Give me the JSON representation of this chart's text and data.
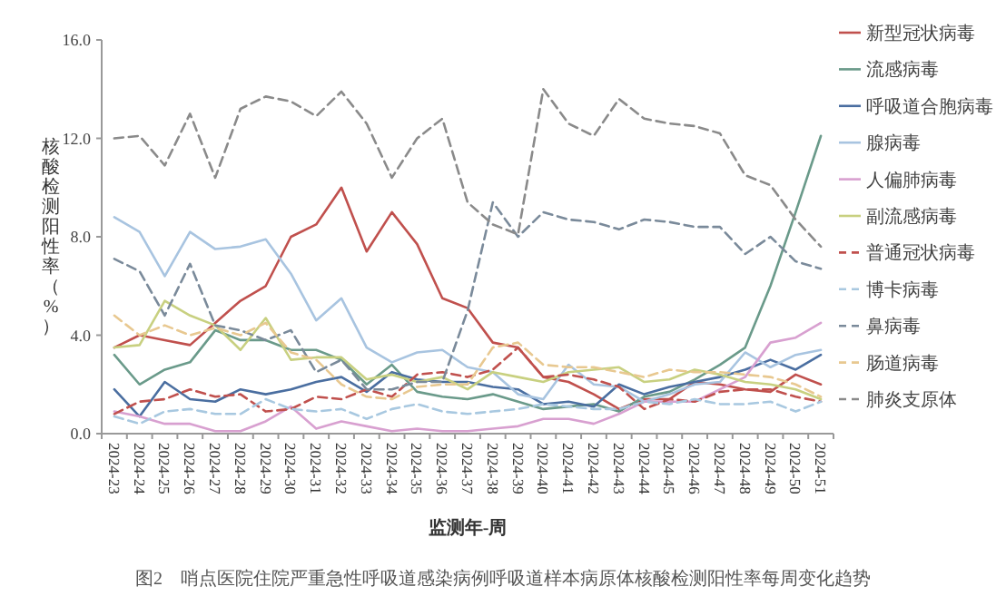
{
  "chart_data": {
    "type": "line",
    "title": "图2　哨点医院住院严重急性呼吸道感染病例呼吸道样本病原体核酸检测阳性率每周变化趋势",
    "xlabel": "监测年-周",
    "ylabel": "核酸检测阳性率（%）",
    "categories": [
      "2024-23",
      "2024-24",
      "2024-25",
      "2024-26",
      "2024-27",
      "2024-28",
      "2024-29",
      "2024-30",
      "2024-31",
      "2024-32",
      "2024-33",
      "2024-34",
      "2024-35",
      "2024-36",
      "2024-37",
      "2024-38",
      "2024-39",
      "2024-40",
      "2024-41",
      "2024-42",
      "2024-43",
      "2024-44",
      "2024-45",
      "2024-46",
      "2024-47",
      "2024-48",
      "2024-49",
      "2024-50",
      "2024-51"
    ],
    "ylim": [
      0,
      16
    ],
    "yticks": [
      {
        "value": 0,
        "label": "0.0"
      },
      {
        "value": 4,
        "label": "4.0"
      },
      {
        "value": 8,
        "label": "8.0"
      },
      {
        "value": 12,
        "label": "12.0"
      },
      {
        "value": 16,
        "label": "16.0"
      }
    ],
    "grid": false,
    "legend": "right",
    "marker": "none",
    "series": [
      {
        "name": "新型冠状病毒",
        "color": "#c0504d",
        "line_style": "solid",
        "values": [
          3.5,
          4.0,
          3.8,
          3.6,
          4.5,
          5.4,
          6.0,
          8.0,
          8.5,
          10.0,
          7.4,
          9.0,
          7.7,
          5.5,
          5.1,
          3.7,
          3.5,
          2.3,
          2.1,
          1.6,
          1.0,
          1.4,
          1.4,
          2.1,
          2.0,
          1.8,
          1.7,
          2.4,
          2.0
        ]
      },
      {
        "name": "流感病毒",
        "color": "#6a9a8a",
        "line_style": "solid",
        "values": [
          3.2,
          2.0,
          2.6,
          2.9,
          4.2,
          3.8,
          3.8,
          3.4,
          3.4,
          3.0,
          2.0,
          2.8,
          1.7,
          1.5,
          1.4,
          1.6,
          1.3,
          1.0,
          1.1,
          1.2,
          0.9,
          1.5,
          1.7,
          2.2,
          2.8,
          3.5,
          6.0,
          9.0,
          12.1
        ]
      },
      {
        "name": "呼吸道合胞病毒",
        "color": "#4a6ea0",
        "line_style": "solid",
        "values": [
          1.8,
          0.7,
          2.1,
          1.4,
          1.3,
          1.8,
          1.6,
          1.8,
          2.1,
          2.3,
          1.7,
          2.5,
          2.2,
          2.1,
          2.1,
          1.9,
          1.8,
          1.2,
          1.3,
          1.1,
          2.0,
          1.6,
          1.9,
          2.1,
          2.3,
          2.6,
          3.0,
          2.6,
          3.2
        ]
      },
      {
        "name": "腺病毒",
        "color": "#a8c4e0",
        "line_style": "solid",
        "values": [
          8.8,
          8.2,
          6.4,
          8.2,
          7.5,
          7.6,
          7.9,
          6.5,
          4.6,
          5.5,
          3.5,
          2.9,
          3.3,
          3.4,
          2.7,
          2.5,
          1.6,
          1.4,
          2.8,
          2.0,
          1.9,
          1.3,
          1.6,
          2.0,
          2.1,
          3.3,
          2.7,
          3.2,
          3.4
        ]
      },
      {
        "name": "人偏肺病毒",
        "color": "#d8a0d0",
        "line_style": "solid",
        "values": [
          0.9,
          0.7,
          0.4,
          0.4,
          0.1,
          0.1,
          0.5,
          1.1,
          0.2,
          0.5,
          0.3,
          0.1,
          0.2,
          0.1,
          0.1,
          0.2,
          0.3,
          0.6,
          0.6,
          0.4,
          0.8,
          1.3,
          1.3,
          1.3,
          1.8,
          2.3,
          3.7,
          3.9,
          4.5
        ]
      },
      {
        "name": "副流感病毒",
        "color": "#c8d080",
        "line_style": "solid",
        "values": [
          3.5,
          3.6,
          5.4,
          4.8,
          4.4,
          3.4,
          4.7,
          3.0,
          3.1,
          3.1,
          2.2,
          2.4,
          2.1,
          2.3,
          1.8,
          2.5,
          2.3,
          2.1,
          2.5,
          2.6,
          2.7,
          2.1,
          2.2,
          2.6,
          2.4,
          2.1,
          2.0,
          1.8,
          1.4
        ]
      },
      {
        "name": "普通冠状病毒",
        "color": "#c0504d",
        "line_style": "dashed",
        "values": [
          0.8,
          1.3,
          1.4,
          1.8,
          1.5,
          1.6,
          0.9,
          1.0,
          1.5,
          1.4,
          1.8,
          1.5,
          2.4,
          2.5,
          2.3,
          2.6,
          3.5,
          2.3,
          2.4,
          2.2,
          1.9,
          1.0,
          1.4,
          1.3,
          1.7,
          1.8,
          1.8,
          1.5,
          1.3
        ]
      },
      {
        "name": "博卡病毒",
        "color": "#a8c8e0",
        "line_style": "dashed",
        "values": [
          0.7,
          0.4,
          0.9,
          1.0,
          0.8,
          0.8,
          1.4,
          1.0,
          0.9,
          1.0,
          0.6,
          1.0,
          1.2,
          0.9,
          0.8,
          0.9,
          1.0,
          1.2,
          1.1,
          1.0,
          1.0,
          1.3,
          1.2,
          1.4,
          1.2,
          1.2,
          1.3,
          0.9,
          1.3
        ]
      },
      {
        "name": "鼻病毒",
        "color": "#7a8a9a",
        "line_style": "dashed",
        "values": [
          7.1,
          6.6,
          4.8,
          6.9,
          4.4,
          4.2,
          3.8,
          4.2,
          2.5,
          3.0,
          1.8,
          1.8,
          2.1,
          2.1,
          5.0,
          9.4,
          8.0,
          9.0,
          8.7,
          8.6,
          8.3,
          8.7,
          8.6,
          8.4,
          8.4,
          7.3,
          8.0,
          7.0,
          6.7
        ]
      },
      {
        "name": "肠道病毒",
        "color": "#e8c890",
        "line_style": "dashed",
        "values": [
          4.8,
          4.0,
          4.4,
          4.0,
          4.3,
          4.0,
          4.5,
          3.3,
          3.0,
          2.0,
          1.5,
          1.4,
          1.9,
          2.0,
          2.0,
          3.5,
          3.7,
          2.8,
          2.7,
          2.7,
          2.5,
          2.3,
          2.6,
          2.5,
          2.5,
          2.4,
          2.3,
          2.0,
          1.5
        ]
      },
      {
        "name": "肺炎支原体",
        "color": "#8a8a8a",
        "line_style": "dashed",
        "values": [
          12.0,
          12.1,
          10.9,
          13.0,
          10.4,
          13.2,
          13.7,
          13.5,
          12.9,
          13.9,
          12.6,
          10.4,
          12.0,
          12.8,
          9.4,
          8.5,
          8.1,
          14.0,
          12.6,
          12.1,
          13.6,
          12.8,
          12.6,
          12.5,
          12.2,
          10.5,
          10.1,
          8.7,
          7.6
        ]
      }
    ]
  }
}
